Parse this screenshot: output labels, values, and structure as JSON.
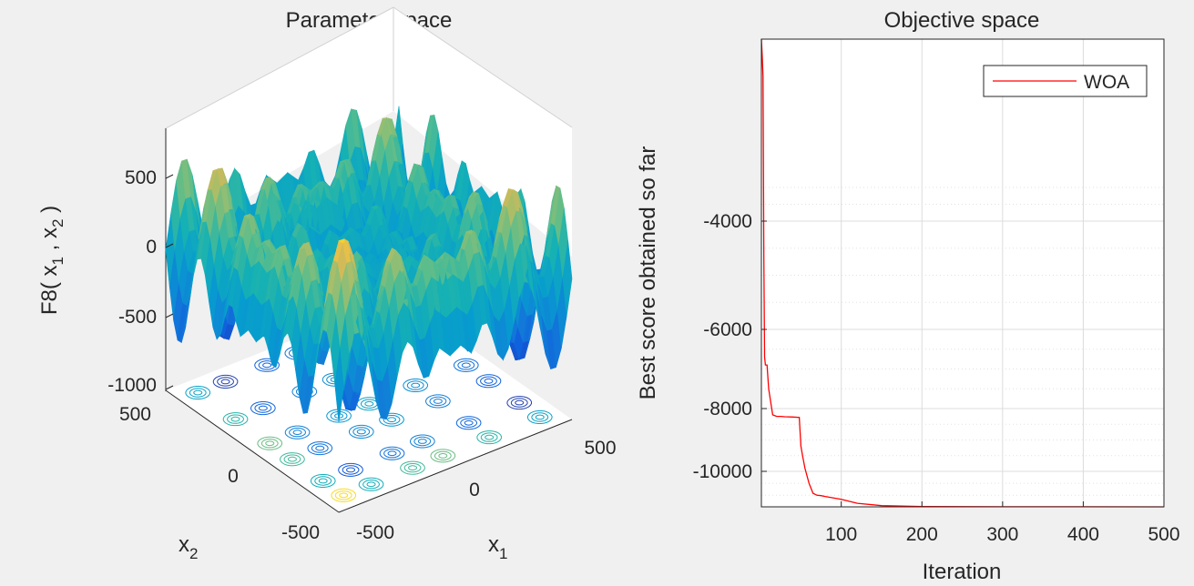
{
  "figure": {
    "background": "#f0f0f0"
  },
  "chart_data": [
    {
      "type": "surface",
      "title": "Parameter space",
      "zlabel": {
        "base": "F8( x",
        "sub1": "1",
        "sep": " , x",
        "sub2": "2",
        "end": " )"
      },
      "xlabel": {
        "base": "x",
        "sub": "1"
      },
      "ylabel": {
        "base": "x",
        "sub": "2"
      },
      "x_ticks": [
        "-500",
        "0",
        "500"
      ],
      "y_ticks": [
        "-500",
        "0",
        "500"
      ],
      "z_ticks": [
        "-1000",
        "-500",
        "0",
        "500"
      ],
      "xlim": [
        -500,
        500
      ],
      "ylim": [
        -500,
        500
      ],
      "zlim": [
        -1000,
        800
      ],
      "function": "-x1*sin(sqrt(|x1|)) - x2*sin(sqrt(|x2|))",
      "contour_projection": true,
      "colormap": "parula",
      "colors": {
        "low": "#3a4fdb",
        "mid": "#20b2aa",
        "high": "#f2b51f"
      }
    },
    {
      "type": "line",
      "title": "Objective space",
      "xlabel": "Iteration",
      "ylabel": "Best score obtained so far",
      "x_ticks": [
        "100",
        "200",
        "300",
        "400",
        "500"
      ],
      "y_ticks": [
        "-4000",
        "-6000",
        "-8000",
        "-10000"
      ],
      "xlim": [
        1,
        500
      ],
      "ylim": [
        -10890,
        1400
      ],
      "y_scale": "symlog",
      "grid": true,
      "legend": {
        "position": "top-right"
      },
      "series": [
        {
          "name": "WOA",
          "color": "#ff0000",
          "x": [
            1,
            2,
            3,
            4,
            5,
            6,
            8,
            10,
            15,
            20,
            25,
            30,
            40,
            48,
            50,
            52,
            55,
            60,
            65,
            70,
            75,
            80,
            100,
            120,
            150,
            200,
            250,
            300,
            400,
            500
          ],
          "y": [
            1400,
            900,
            300,
            -4700,
            -6700,
            -6900,
            -6900,
            -7500,
            -8200,
            -8250,
            -8250,
            -8260,
            -8270,
            -8280,
            -9200,
            -9500,
            -9900,
            -10300,
            -10550,
            -10600,
            -10610,
            -10630,
            -10700,
            -10800,
            -10860,
            -10884,
            -10886,
            -10887,
            -10888,
            -10889
          ]
        }
      ]
    }
  ]
}
